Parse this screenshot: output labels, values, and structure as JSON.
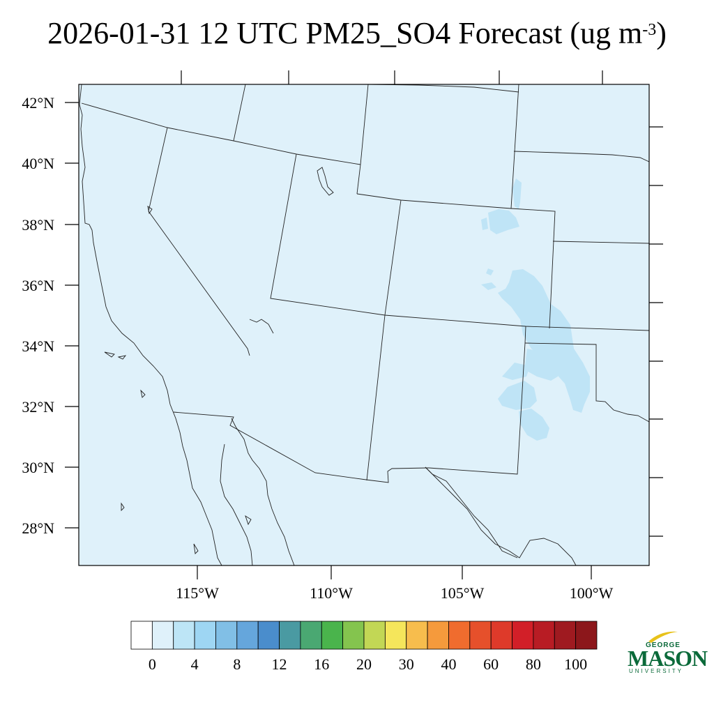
{
  "title": {
    "text": "2026-01-31 12 UTC PM25_SO4 Forecast (ug m",
    "unit_exponent": "-3",
    "close": ")"
  },
  "map": {
    "lat_labels": [
      "42°N",
      "40°N",
      "38°N",
      "36°N",
      "34°N",
      "32°N",
      "30°N",
      "28°N"
    ],
    "lon_labels": [
      "115°W",
      "110°W",
      "105°W",
      "100°W"
    ],
    "background_fill": "#dff1fa",
    "elevated_fill": "#bfe4f6"
  },
  "colorbar": {
    "labels": [
      "0",
      "4",
      "8",
      "12",
      "16",
      "20",
      "30",
      "40",
      "60",
      "80",
      "100"
    ],
    "colors": [
      "#ffffff",
      "#dff1fa",
      "#bde5f6",
      "#9ed6f3",
      "#81bfe6",
      "#65a6dc",
      "#4a8dcc",
      "#4a9aa2",
      "#4aa872",
      "#4ab44c",
      "#84c44e",
      "#c2d755",
      "#f5e65b",
      "#f7bd4d",
      "#f59a3c",
      "#f06c2e",
      "#e6502b",
      "#de3a2a",
      "#d21f28",
      "#b81c24",
      "#9f1a20",
      "#8c171b"
    ]
  },
  "logo": {
    "line1": "GEORGE",
    "line2": "MASON",
    "line3": "UNIVERSITY"
  }
}
